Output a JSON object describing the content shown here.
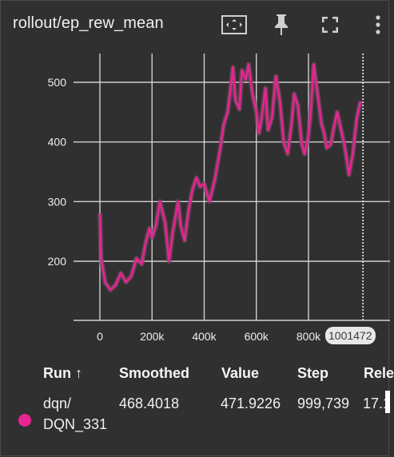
{
  "header": {
    "title": "rollout/ep_rew_mean",
    "icons": [
      "fit-domain-icon",
      "pin-icon",
      "fullscreen-icon",
      "more-vert-icon"
    ]
  },
  "chart": {
    "step_badge": "1001472",
    "colors": {
      "series": "#e52592",
      "shadow": "#7a4a62",
      "grid": "#d0d0d0",
      "background": "#303030"
    }
  },
  "chart_data": {
    "type": "line",
    "title": "rollout/ep_rew_mean",
    "xlabel": "",
    "ylabel": "",
    "xlim": [
      -25000,
      1030000
    ],
    "ylim": [
      100,
      550
    ],
    "x_ticks": [
      0,
      200000,
      400000,
      600000,
      800000
    ],
    "x_tick_labels": [
      "0",
      "200k",
      "400k",
      "600k",
      "800k"
    ],
    "y_ticks": [
      200,
      300,
      400,
      500
    ],
    "y_tick_labels": [
      "200",
      "300",
      "400",
      "500"
    ],
    "grid": true,
    "series": [
      {
        "name": "dqn/DQN_331",
        "x": [
          0,
          5000,
          20000,
          40000,
          60000,
          80000,
          100000,
          120000,
          140000,
          160000,
          175000,
          190000,
          200000,
          215000,
          230000,
          250000,
          265000,
          280000,
          300000,
          310000,
          325000,
          340000,
          355000,
          370000,
          385000,
          400000,
          420000,
          440000,
          460000,
          475000,
          490000,
          500000,
          510000,
          520000,
          535000,
          545000,
          560000,
          570000,
          585000,
          600000,
          610000,
          620000,
          635000,
          645000,
          660000,
          675000,
          690000,
          705000,
          720000,
          735000,
          745000,
          760000,
          775000,
          785000,
          800000,
          810000,
          820000,
          835000,
          850000,
          860000,
          870000,
          885000,
          900000,
          910000,
          925000,
          940000,
          955000,
          970000,
          985000,
          999739
        ],
        "values": [
          280,
          205,
          165,
          152,
          160,
          180,
          165,
          175,
          205,
          195,
          230,
          255,
          240,
          260,
          300,
          265,
          200,
          250,
          300,
          260,
          235,
          285,
          320,
          340,
          325,
          330,
          300,
          335,
          385,
          430,
          450,
          485,
          525,
          470,
          455,
          520,
          505,
          530,
          480,
          450,
          415,
          440,
          490,
          420,
          440,
          510,
          470,
          400,
          380,
          430,
          480,
          460,
          395,
          380,
          410,
          460,
          530,
          480,
          430,
          415,
          390,
          395,
          430,
          450,
          420,
          390,
          345,
          380,
          440,
          468.4
        ]
      }
    ]
  },
  "table": {
    "headers": {
      "run": "Run ↑",
      "smoothed": "Smoothed",
      "value": "Value",
      "step": "Step",
      "relative": "Relе"
    },
    "row": {
      "run_line1": "dqn/",
      "run_line2": "DQN_331",
      "smoothed": "468.4018",
      "value": "471.9226",
      "step": "999,739",
      "relative": "17.1"
    }
  }
}
